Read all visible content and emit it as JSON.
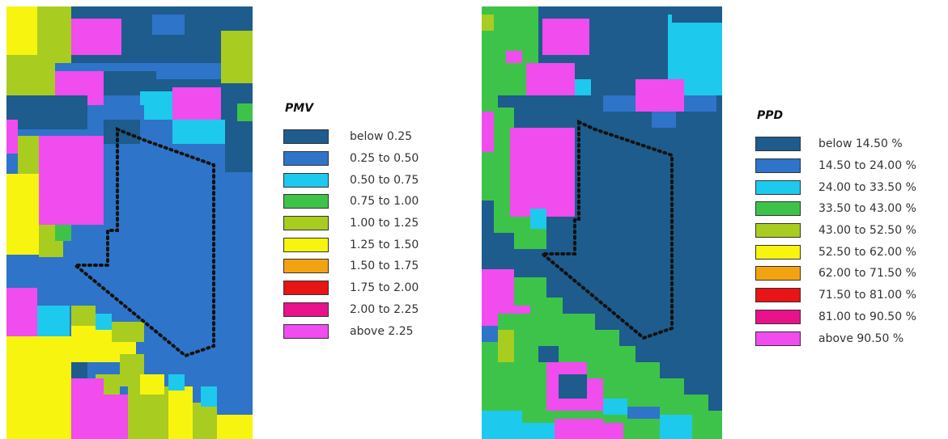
{
  "colors": {
    "c0": "#1d5c8c",
    "c1": "#2e74c8",
    "c2": "#1ec9ee",
    "c3": "#3ec34a",
    "c4": "#a9cc21",
    "c5": "#f7f50f",
    "c6": "#f3a312",
    "c7": "#e81416",
    "c8": "#e8138a",
    "c9": "#f04cee"
  },
  "pmv": {
    "title": "PMV",
    "legend": [
      {
        "label": "below 0.25",
        "color": "#1d5c8c"
      },
      {
        "label": "0.25 to 0.50",
        "color": "#2e74c8"
      },
      {
        "label": "0.50 to 0.75",
        "color": "#1ec9ee"
      },
      {
        "label": "0.75 to 1.00",
        "color": "#3ec34a"
      },
      {
        "label": "1.00 to 1.25",
        "color": "#a9cc21"
      },
      {
        "label": "1.25 to 1.50",
        "color": "#f7f50f"
      },
      {
        "label": "1.50 to 1.75",
        "color": "#f3a312"
      },
      {
        "label": "1.75 to 2.00",
        "color": "#e81416"
      },
      {
        "label": "2.00 to 2.25",
        "color": "#e8138a"
      },
      {
        "label": "above 2.25",
        "color": "#f04cee"
      }
    ]
  },
  "ppd": {
    "title": "PPD",
    "legend": [
      {
        "label": "below 14.50 %",
        "color": "#1d5c8c"
      },
      {
        "label": "14.50 to 24.00 %",
        "color": "#2e74c8"
      },
      {
        "label": "24.00 to 33.50 %",
        "color": "#1ec9ee"
      },
      {
        "label": "33.50 to 43.00 %",
        "color": "#3ec34a"
      },
      {
        "label": "43.00 to 52.50 %",
        "color": "#a9cc21"
      },
      {
        "label": "52.50 to 62.00 %",
        "color": "#f7f50f"
      },
      {
        "label": "62.00 to 71.50 %",
        "color": "#f3a312"
      },
      {
        "label": "71.50 to 81.00 %",
        "color": "#e81416"
      },
      {
        "label": "81.00 to 90.50 %",
        "color": "#e8138a"
      },
      {
        "label": "above 90.50 %",
        "color": "#f04cee"
      }
    ]
  }
}
